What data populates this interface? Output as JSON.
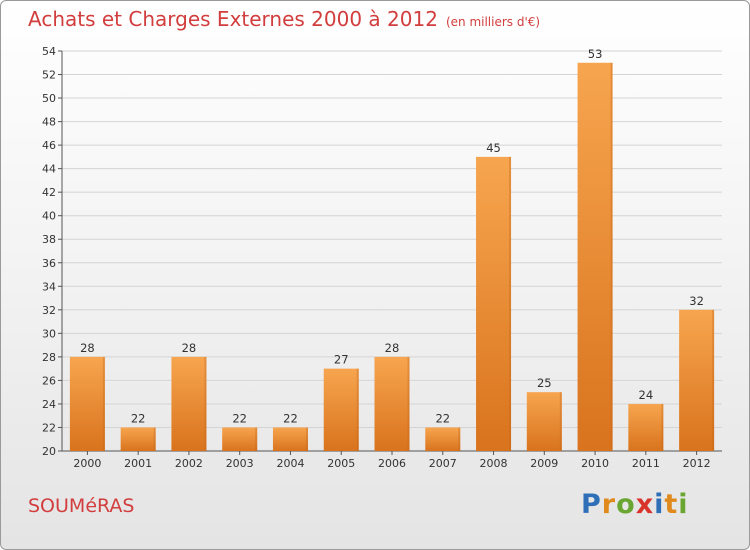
{
  "title": "Achats et Charges Externes 2000 à 2012",
  "subtitle": "(en milliers d'€)",
  "town": "SOUMéRAS",
  "logo": {
    "letters": [
      "P",
      "r",
      "o",
      "x",
      "i",
      "t",
      "i"
    ],
    "colors": [
      "#2f6fb7",
      "#e08a1e",
      "#6aa632",
      "#d9342b",
      "#2f6fb7",
      "#e08a1e",
      "#6aa632"
    ]
  },
  "colors": {
    "bar_light": "#f7a54f",
    "bar_dark": "#d9731d",
    "title": "#d23e3e"
  },
  "chart_data": {
    "type": "bar",
    "categories": [
      "2000",
      "2001",
      "2002",
      "2003",
      "2004",
      "2005",
      "2006",
      "2007",
      "2008",
      "2009",
      "2010",
      "2011",
      "2012"
    ],
    "values": [
      28,
      22,
      28,
      22,
      22,
      27,
      28,
      22,
      45,
      25,
      53,
      24,
      32
    ],
    "ylim": [
      20,
      54
    ],
    "yticks": [
      20,
      22,
      24,
      26,
      28,
      30,
      32,
      34,
      36,
      38,
      40,
      42,
      44,
      46,
      48,
      50,
      52,
      54
    ],
    "grid": true
  }
}
